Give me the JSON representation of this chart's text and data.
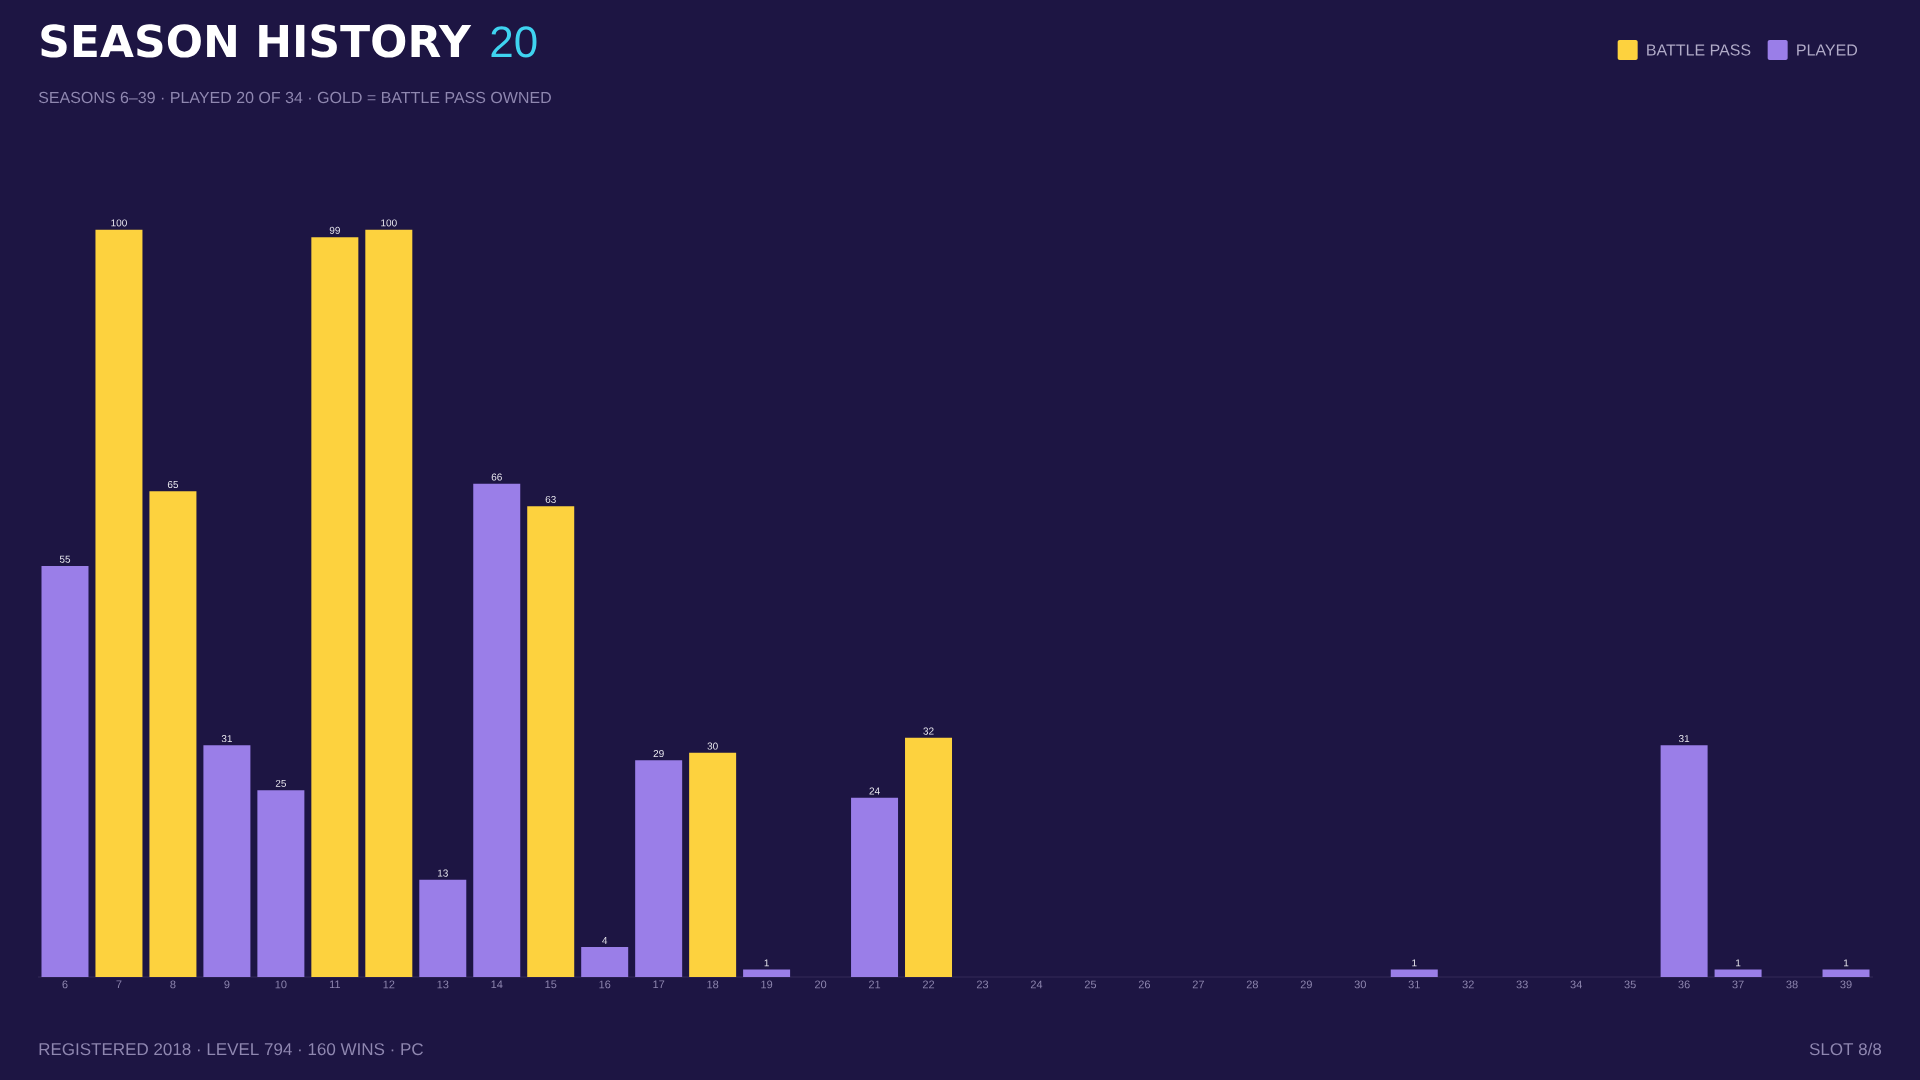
{
  "chart_data": {
    "type": "bar",
    "title": "SEASON HISTORY",
    "subtitle": "SEASONS 6–39 · PLAYED 20 OF 34 · GOLD = BATTLE PASS OWNED",
    "annotations": [
      "20",
      "REGISTERED 2018 · LEVEL 794 · 160 WINS · PC",
      "SLOT 8/8"
    ],
    "categories": [
      "6",
      "7",
      "8",
      "9",
      "10",
      "11",
      "12",
      "13",
      "14",
      "15",
      "16",
      "17",
      "18",
      "19",
      "20",
      "21",
      "22",
      "23",
      "24",
      "25",
      "26",
      "27",
      "28",
      "29",
      "30",
      "31",
      "32",
      "33",
      "34",
      "35",
      "36",
      "37",
      "38",
      "39"
    ],
    "series": [
      {
        "name": "BATTLE PASS",
        "color": "#fdd23e",
        "values": [
          null,
          100,
          65,
          null,
          null,
          99,
          100,
          null,
          null,
          63,
          null,
          null,
          30,
          null,
          null,
          null,
          32,
          null,
          null,
          null,
          null,
          null,
          null,
          null,
          null,
          null,
          null,
          null,
          null,
          null,
          null,
          null,
          null,
          null
        ],
        "value_labels": [
          null,
          "100",
          "65",
          null,
          null,
          "99",
          "100",
          null,
          null,
          "63",
          null,
          null,
          "30",
          null,
          null,
          null,
          "32",
          null,
          null,
          null,
          null,
          null,
          null,
          null,
          null,
          null,
          null,
          null,
          null,
          null,
          null,
          null,
          null,
          null
        ]
      },
      {
        "name": "PLAYED",
        "color": "#9a7ee8",
        "values": [
          55,
          null,
          null,
          31,
          25,
          null,
          null,
          13,
          66,
          null,
          4,
          29,
          null,
          1,
          null,
          24,
          null,
          null,
          null,
          null,
          null,
          null,
          null,
          null,
          null,
          1,
          null,
          null,
          null,
          null,
          31,
          1,
          null,
          1
        ],
        "value_labels": [
          "55",
          null,
          null,
          "31",
          "25",
          null,
          null,
          "13",
          "66",
          null,
          "4",
          "29",
          null,
          "1",
          null,
          "24",
          null,
          null,
          null,
          null,
          null,
          null,
          null,
          null,
          null,
          "1",
          null,
          null,
          null,
          null,
          "31",
          "1",
          null,
          "1"
        ]
      }
    ],
    "legend": "top right"
  }
}
